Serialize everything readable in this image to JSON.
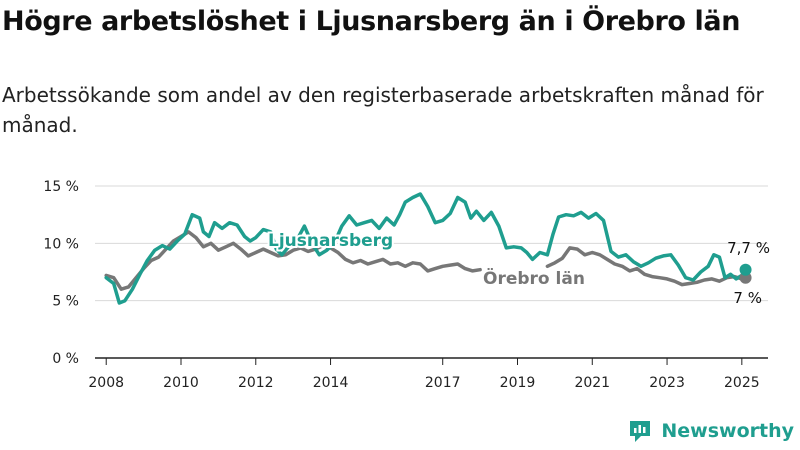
{
  "title": "Högre arbetslöshet i Ljusnarsberg än i Örebro län",
  "subtitle": "Arbetssökande som andel av den registerbaserade arbetskraften månad för månad.",
  "brand": "Newsworthy",
  "colors": {
    "ljusnarsberg": "#1f9e8f",
    "orebro": "#777777",
    "grid": "#d9d9d9",
    "axis": "#222222"
  },
  "chart_data": {
    "type": "line",
    "ylim": [
      0,
      15
    ],
    "xlim": [
      2007.7,
      2025.7
    ],
    "y_ticks": [
      {
        "value": 0,
        "label": "0 %"
      },
      {
        "value": 5,
        "label": "5 %"
      },
      {
        "value": 10,
        "label": "10 %"
      },
      {
        "value": 15,
        "label": "15 %"
      }
    ],
    "x_ticks": [
      {
        "value": 2008,
        "label": "2008"
      },
      {
        "value": 2010,
        "label": "2010"
      },
      {
        "value": 2012,
        "label": "2012"
      },
      {
        "value": 2014,
        "label": "2014"
      },
      {
        "value": 2017,
        "label": "2017"
      },
      {
        "value": 2019,
        "label": "2019"
      },
      {
        "value": 2021,
        "label": "2021"
      },
      {
        "value": 2023,
        "label": "2023"
      },
      {
        "value": 2025,
        "label": "2025"
      }
    ],
    "grid": true,
    "series": [
      {
        "name": "Ljusnarsberg",
        "color": "#1f9e8f",
        "end_label": "7,7 %",
        "points": [
          [
            2008.0,
            7.0
          ],
          [
            2008.2,
            6.5
          ],
          [
            2008.35,
            4.8
          ],
          [
            2008.5,
            5.0
          ],
          [
            2008.7,
            6.0
          ],
          [
            2008.9,
            7.3
          ],
          [
            2009.1,
            8.5
          ],
          [
            2009.3,
            9.4
          ],
          [
            2009.5,
            9.8
          ],
          [
            2009.7,
            9.5
          ],
          [
            2009.9,
            10.2
          ],
          [
            2010.1,
            10.8
          ],
          [
            2010.3,
            12.5
          ],
          [
            2010.5,
            12.2
          ],
          [
            2010.6,
            11.0
          ],
          [
            2010.75,
            10.6
          ],
          [
            2010.9,
            11.8
          ],
          [
            2011.1,
            11.3
          ],
          [
            2011.3,
            11.8
          ],
          [
            2011.5,
            11.6
          ],
          [
            2011.7,
            10.6
          ],
          [
            2011.85,
            10.2
          ],
          [
            2012.0,
            10.5
          ],
          [
            2012.2,
            11.2
          ],
          [
            2012.4,
            11.0
          ],
          [
            2012.55,
            9.5
          ],
          [
            2012.7,
            9.0
          ],
          [
            2012.9,
            9.8
          ],
          [
            2013.1,
            10.3
          ],
          [
            2013.3,
            11.5
          ],
          [
            2013.5,
            10.0
          ],
          [
            2013.7,
            9.0
          ],
          [
            2013.9,
            9.4
          ],
          [
            2014.1,
            10.0
          ],
          [
            2014.3,
            11.5
          ],
          [
            2014.5,
            12.4
          ],
          [
            2014.7,
            11.6
          ],
          [
            2014.9,
            11.8
          ],
          [
            2015.1,
            12.0
          ],
          [
            2015.3,
            11.3
          ],
          [
            2015.5,
            12.2
          ],
          [
            2015.7,
            11.6
          ],
          [
            2015.85,
            12.5
          ],
          [
            2016.0,
            13.6
          ],
          [
            2016.2,
            14.0
          ],
          [
            2016.4,
            14.3
          ],
          [
            2016.6,
            13.2
          ],
          [
            2016.8,
            11.8
          ],
          [
            2017.0,
            12.0
          ],
          [
            2017.2,
            12.6
          ],
          [
            2017.4,
            14.0
          ],
          [
            2017.6,
            13.6
          ],
          [
            2017.75,
            12.2
          ],
          [
            2017.9,
            12.8
          ],
          [
            2018.1,
            12.0
          ],
          [
            2018.3,
            12.7
          ],
          [
            2018.5,
            11.5
          ],
          [
            2018.7,
            9.6
          ],
          [
            2018.9,
            9.7
          ],
          [
            2019.1,
            9.6
          ],
          [
            2019.25,
            9.2
          ],
          [
            2019.4,
            8.6
          ],
          [
            2019.6,
            9.2
          ],
          [
            2019.8,
            9.0
          ],
          [
            2019.95,
            10.8
          ],
          [
            2020.1,
            12.3
          ],
          [
            2020.3,
            12.5
          ],
          [
            2020.5,
            12.4
          ],
          [
            2020.7,
            12.7
          ],
          [
            2020.9,
            12.2
          ],
          [
            2021.1,
            12.6
          ],
          [
            2021.3,
            12.0
          ],
          [
            2021.5,
            9.3
          ],
          [
            2021.7,
            8.8
          ],
          [
            2021.9,
            9.0
          ],
          [
            2022.1,
            8.4
          ],
          [
            2022.3,
            8.0
          ],
          [
            2022.5,
            8.3
          ],
          [
            2022.7,
            8.7
          ],
          [
            2022.9,
            8.9
          ],
          [
            2023.1,
            9.0
          ],
          [
            2023.3,
            8.1
          ],
          [
            2023.5,
            7.0
          ],
          [
            2023.7,
            6.8
          ],
          [
            2023.9,
            7.5
          ],
          [
            2024.1,
            8.0
          ],
          [
            2024.25,
            9.0
          ],
          [
            2024.4,
            8.8
          ],
          [
            2024.55,
            7.0
          ],
          [
            2024.7,
            7.3
          ],
          [
            2024.85,
            6.9
          ],
          [
            2025.0,
            7.2
          ],
          [
            2025.1,
            7.7
          ]
        ]
      },
      {
        "name": "Örebro län",
        "color": "#777777",
        "end_label": "7 %",
        "points": [
          [
            2008.0,
            7.2
          ],
          [
            2008.2,
            7.0
          ],
          [
            2008.4,
            6.0
          ],
          [
            2008.6,
            6.2
          ],
          [
            2008.8,
            7.0
          ],
          [
            2009.0,
            7.8
          ],
          [
            2009.2,
            8.5
          ],
          [
            2009.4,
            8.8
          ],
          [
            2009.6,
            9.5
          ],
          [
            2009.8,
            10.2
          ],
          [
            2010.0,
            10.6
          ],
          [
            2010.2,
            11.0
          ],
          [
            2010.4,
            10.5
          ],
          [
            2010.6,
            9.7
          ],
          [
            2010.8,
            10.0
          ],
          [
            2011.0,
            9.4
          ],
          [
            2011.2,
            9.7
          ],
          [
            2011.4,
            10.0
          ],
          [
            2011.6,
            9.5
          ],
          [
            2011.8,
            8.9
          ],
          [
            2012.0,
            9.2
          ],
          [
            2012.2,
            9.5
          ],
          [
            2012.4,
            9.2
          ],
          [
            2012.6,
            8.9
          ],
          [
            2012.8,
            9.0
          ],
          [
            2013.0,
            9.4
          ],
          [
            2013.2,
            9.6
          ],
          [
            2013.4,
            9.3
          ],
          [
            2013.6,
            9.5
          ],
          [
            2013.8,
            9.8
          ],
          [
            2014.0,
            9.6
          ],
          [
            2014.2,
            9.2
          ],
          [
            2014.4,
            8.6
          ],
          [
            2014.6,
            8.3
          ],
          [
            2014.8,
            8.5
          ],
          [
            2015.0,
            8.2
          ],
          [
            2015.2,
            8.4
          ],
          [
            2015.4,
            8.6
          ],
          [
            2015.6,
            8.2
          ],
          [
            2015.8,
            8.3
          ],
          [
            2016.0,
            8.0
          ],
          [
            2016.2,
            8.3
          ],
          [
            2016.4,
            8.2
          ],
          [
            2016.6,
            7.6
          ],
          [
            2016.8,
            7.8
          ],
          [
            2017.0,
            8.0
          ],
          [
            2017.2,
            8.1
          ],
          [
            2017.4,
            8.2
          ],
          [
            2017.6,
            7.8
          ],
          [
            2017.8,
            7.6
          ],
          [
            2018.0,
            7.7
          ]
        ]
      },
      {
        "name": "",
        "color": "#777777",
        "points": [
          [
            2019.8,
            8.0
          ],
          [
            2020.0,
            8.3
          ],
          [
            2020.2,
            8.7
          ],
          [
            2020.4,
            9.6
          ],
          [
            2020.6,
            9.5
          ],
          [
            2020.8,
            9.0
          ],
          [
            2021.0,
            9.2
          ],
          [
            2021.2,
            9.0
          ],
          [
            2021.4,
            8.6
          ],
          [
            2021.6,
            8.2
          ],
          [
            2021.8,
            8.0
          ],
          [
            2022.0,
            7.6
          ],
          [
            2022.2,
            7.8
          ],
          [
            2022.4,
            7.3
          ],
          [
            2022.6,
            7.1
          ],
          [
            2022.8,
            7.0
          ],
          [
            2023.0,
            6.9
          ],
          [
            2023.2,
            6.7
          ],
          [
            2023.4,
            6.4
          ],
          [
            2023.6,
            6.5
          ],
          [
            2023.8,
            6.6
          ],
          [
            2024.0,
            6.8
          ],
          [
            2024.2,
            6.9
          ],
          [
            2024.4,
            6.7
          ],
          [
            2024.6,
            7.0
          ],
          [
            2024.8,
            7.1
          ],
          [
            2025.0,
            6.9
          ],
          [
            2025.1,
            7.0
          ]
        ]
      }
    ]
  }
}
